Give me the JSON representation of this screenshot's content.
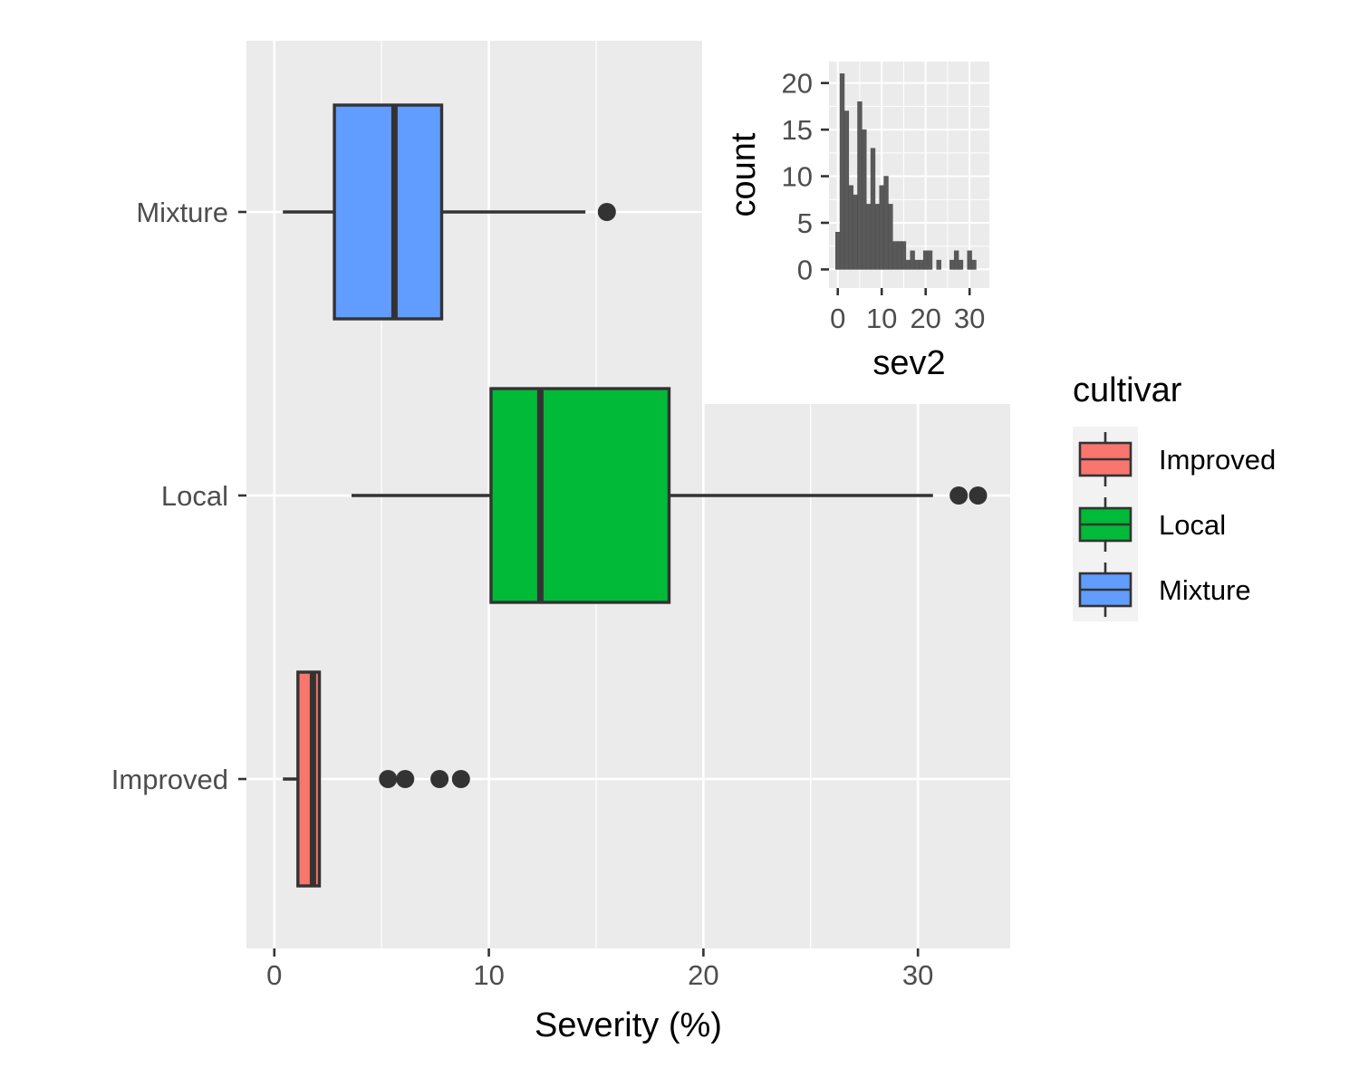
{
  "chart_data": [
    {
      "type": "boxplot",
      "orientation": "horizontal",
      "xlabel": "Severity (%)",
      "ylabel": "",
      "xlim": [
        -1.3,
        34.3
      ],
      "x_ticks": [
        0,
        10,
        20,
        30
      ],
      "categories": [
        "Mixture",
        "Local",
        "Improved"
      ],
      "grid": true,
      "series": [
        {
          "name": "Mixture",
          "color": "#619CFF",
          "whisker_low": 0.4,
          "q1": 2.8,
          "median": 5.6,
          "q3": 7.8,
          "whisker_high": 14.5,
          "outliers": [
            15.5
          ]
        },
        {
          "name": "Local",
          "color": "#00BA38",
          "whisker_low": 3.6,
          "q1": 10.1,
          "median": 12.4,
          "q3": 18.4,
          "whisker_high": 30.7,
          "outliers": [
            31.9,
            32.8
          ]
        },
        {
          "name": "Improved",
          "color": "#F8766D",
          "whisker_low": 0.4,
          "q1": 1.1,
          "median": 1.8,
          "q3": 2.1,
          "whisker_high": 2.1,
          "outliers": [
            5.3,
            6.1,
            7.7,
            8.7
          ]
        }
      ],
      "legend": {
        "title": "cultivar",
        "position": "right",
        "items": [
          "Improved",
          "Local",
          "Mixture"
        ]
      }
    },
    {
      "type": "histogram",
      "title": "",
      "xlabel": "sev2",
      "ylabel": "count",
      "xlim": [
        -2,
        34.5
      ],
      "ylim": [
        -2,
        22.3
      ],
      "x_ticks": [
        0,
        10,
        20,
        30
      ],
      "y_ticks": [
        0,
        5,
        10,
        15,
        20
      ],
      "bin_width": 1,
      "bins": [
        {
          "x": 0,
          "count": 4
        },
        {
          "x": 1,
          "count": 21
        },
        {
          "x": 2,
          "count": 17
        },
        {
          "x": 3,
          "count": 9
        },
        {
          "x": 4,
          "count": 8
        },
        {
          "x": 5,
          "count": 18
        },
        {
          "x": 6,
          "count": 15
        },
        {
          "x": 7,
          "count": 7
        },
        {
          "x": 8,
          "count": 13
        },
        {
          "x": 9,
          "count": 7
        },
        {
          "x": 10,
          "count": 9
        },
        {
          "x": 11,
          "count": 10
        },
        {
          "x": 12,
          "count": 7
        },
        {
          "x": 13,
          "count": 3
        },
        {
          "x": 14,
          "count": 3
        },
        {
          "x": 15,
          "count": 3
        },
        {
          "x": 16,
          "count": 1
        },
        {
          "x": 17,
          "count": 2
        },
        {
          "x": 18,
          "count": 1
        },
        {
          "x": 19,
          "count": 1
        },
        {
          "x": 20,
          "count": 2
        },
        {
          "x": 21,
          "count": 2
        },
        {
          "x": 23,
          "count": 1
        },
        {
          "x": 26,
          "count": 1
        },
        {
          "x": 27,
          "count": 2
        },
        {
          "x": 28,
          "count": 1
        },
        {
          "x": 30,
          "count": 2
        },
        {
          "x": 31,
          "count": 1
        }
      ]
    }
  ]
}
